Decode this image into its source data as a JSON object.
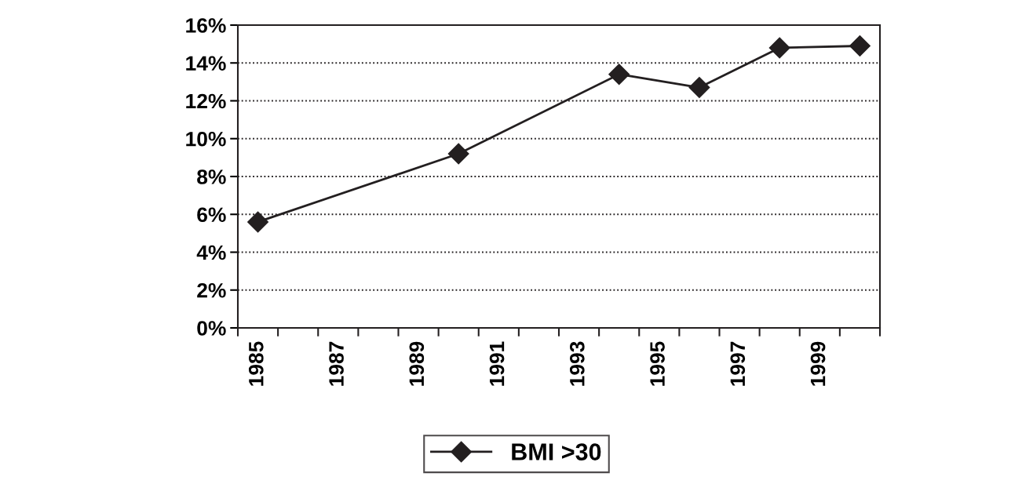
{
  "chart_data": {
    "type": "line",
    "categories": [
      "1985",
      null,
      "1987",
      null,
      "1989",
      null,
      "1991",
      null,
      "1993",
      null,
      "1995",
      null,
      "1997",
      null,
      "1999",
      null
    ],
    "series": [
      {
        "name": "BMI >30",
        "color": "#231f20",
        "values": [
          5.6,
          null,
          null,
          null,
          null,
          9.2,
          null,
          null,
          null,
          13.4,
          null,
          12.7,
          null,
          14.8,
          null,
          14.9
        ]
      }
    ],
    "ylim": [
      0,
      16
    ],
    "yticks": [
      {
        "value": 0,
        "label": "0%"
      },
      {
        "value": 2,
        "label": "2%"
      },
      {
        "value": 4,
        "label": "4%"
      },
      {
        "value": 6,
        "label": "6%"
      },
      {
        "value": 8,
        "label": "8%"
      },
      {
        "value": 10,
        "label": "10%"
      },
      {
        "value": 12,
        "label": "12%"
      },
      {
        "value": 14,
        "label": "14%"
      },
      {
        "value": 16,
        "label": "16%"
      }
    ],
    "grid": "y",
    "legend": "bottom",
    "marker": "diamond",
    "line_style": "solid"
  }
}
